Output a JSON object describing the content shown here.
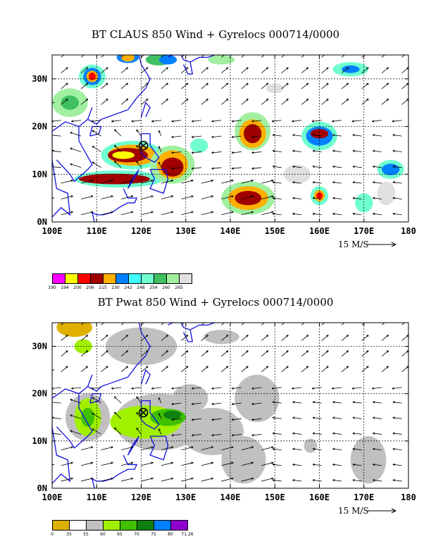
{
  "panels": [
    {
      "id": "claus",
      "title": "BT CLAUS 850 Wind + Gyrelocs 000714/0000",
      "legend_values": [
        "190",
        "194",
        "200",
        "206",
        "215",
        "230",
        "242",
        "248",
        "254",
        "260",
        "265"
      ],
      "legend_colors": [
        "#ff00ff",
        "#ffff00",
        "#ff0000",
        "#a00000",
        "#ffb000",
        "#0080ff",
        "#40ffff",
        "#70ffd0",
        "#40c060",
        "#a0f0a0",
        "#e0e0e0"
      ]
    },
    {
      "id": "pwat",
      "title": "BT Pwat 850 Wind + Gyrelocs 000714/0000",
      "legend_values": [
        "0",
        "35",
        "55",
        "60",
        "65",
        "70",
        "75",
        "80",
        "71.26"
      ],
      "legend_colors": [
        "#e0b000",
        "#ffffff",
        "#c0c0c0",
        "#a0f000",
        "#40c000",
        "#108010",
        "#0080ff",
        "#9000d0"
      ]
    }
  ],
  "axes": {
    "x_ticks": [
      "100E",
      "110E",
      "120E",
      "130E",
      "140E",
      "150E",
      "160E",
      "170E",
      "180"
    ],
    "y_ticks": [
      "0N",
      "10N",
      "20N",
      "30N"
    ],
    "xlim": [
      100,
      180
    ],
    "ylim": [
      0,
      35
    ]
  },
  "wind_scale_label": "15 M/S",
  "gyre_location": {
    "lon": 120.5,
    "lat": 16
  }
}
